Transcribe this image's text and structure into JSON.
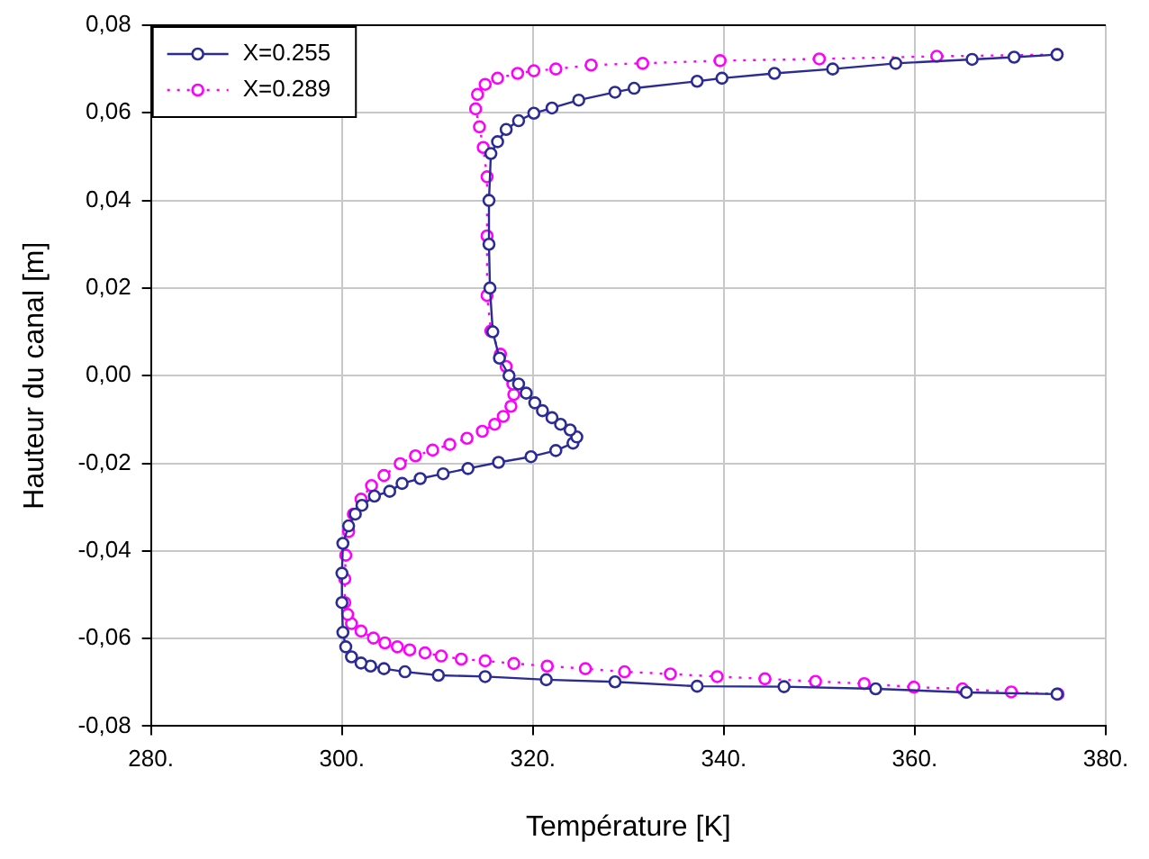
{
  "chart_data": {
    "type": "line",
    "xlabel": "Température [K]",
    "ylabel": "Hauteur du canal [m]",
    "xlim": [
      280,
      380
    ],
    "xticks": [
      {
        "value": 280,
        "label": "280."
      },
      {
        "value": 300,
        "label": "300."
      },
      {
        "value": 320,
        "label": "320."
      },
      {
        "value": 340,
        "label": "340."
      },
      {
        "value": 360,
        "label": "360."
      },
      {
        "value": 380,
        "label": "380."
      }
    ],
    "ylim": [
      -0.08,
      0.08
    ],
    "yticks": [
      {
        "value": -0.08,
        "label": "-0,08"
      },
      {
        "value": -0.06,
        "label": "-0,06"
      },
      {
        "value": -0.04,
        "label": "-0,04"
      },
      {
        "value": -0.02,
        "label": "-0,02"
      },
      {
        "value": 0,
        "label": "0,00"
      },
      {
        "value": 0.02,
        "label": "0,02"
      },
      {
        "value": 0.04,
        "label": "0,04"
      },
      {
        "value": 0.06,
        "label": "0,06"
      },
      {
        "value": 0.08,
        "label": "0,08"
      }
    ],
    "grid": true,
    "legend": "top left",
    "marker": "circle",
    "series": [
      {
        "name": "X=0.255",
        "color": "#2b2b96",
        "line_style": "solid",
        "x": [
          374.9,
          365.4,
          355.9,
          346.3,
          337.2,
          328.6,
          321.4,
          315.0,
          310.1,
          306.6,
          304.4,
          303.0,
          302.0,
          301.0,
          300.4,
          300.1,
          300.0,
          300.0,
          300.1,
          300.7,
          301.4,
          302.1,
          303.4,
          305.0,
          306.3,
          308.2,
          310.6,
          313.2,
          316.4,
          319.8,
          322.4,
          324.2,
          324.6,
          323.9,
          322.9,
          322.0,
          321.0,
          320.2,
          319.3,
          318.5,
          317.5,
          316.5,
          315.8,
          315.5,
          315.4,
          315.4,
          315.6,
          316.3,
          317.2,
          318.5,
          320.1,
          322.0,
          324.8,
          328.6,
          330.6,
          337.2,
          339.8,
          345.3,
          351.4,
          358.0,
          366.0,
          370.4,
          374.9
        ],
        "values": [
          -0.0727,
          -0.0723,
          -0.0715,
          -0.071,
          -0.0709,
          -0.0699,
          -0.0694,
          -0.0687,
          -0.0684,
          -0.0676,
          -0.0669,
          -0.0663,
          -0.0656,
          -0.0642,
          -0.0619,
          -0.0586,
          -0.0518,
          -0.0451,
          -0.0383,
          -0.0343,
          -0.0316,
          -0.0296,
          -0.0275,
          -0.0264,
          -0.0246,
          -0.0235,
          -0.0224,
          -0.0212,
          -0.0198,
          -0.0185,
          -0.0171,
          -0.0154,
          -0.014,
          -0.0124,
          -0.0111,
          -0.0096,
          -0.008,
          -0.0062,
          -0.004,
          -0.0019,
          0.0,
          0.004,
          0.01,
          0.02,
          0.03,
          0.04,
          0.0507,
          0.0534,
          0.0562,
          0.0582,
          0.0599,
          0.0611,
          0.0629,
          0.0647,
          0.0656,
          0.0672,
          0.0679,
          0.069,
          0.07,
          0.0713,
          0.0722,
          0.0727,
          0.0733
        ]
      },
      {
        "name": "X=0.289",
        "color": "#ff00ff",
        "line_style": "dotted",
        "x": [
          375.0,
          370.1,
          365.0,
          359.9,
          354.7,
          349.6,
          344.3,
          339.3,
          334.4,
          329.6,
          325.5,
          321.5,
          318.0,
          315.0,
          312.5,
          310.4,
          308.7,
          307.1,
          305.8,
          304.5,
          303.3,
          302.0,
          301.0,
          300.6,
          300.3,
          300.3,
          300.4,
          300.7,
          301.2,
          302.0,
          303.1,
          304.4,
          306.1,
          307.7,
          309.5,
          311.3,
          313.1,
          314.7,
          316.0,
          316.9,
          317.7,
          318.0,
          317.9,
          317.2,
          316.6,
          315.6,
          315.2,
          315.2,
          315.2,
          314.8,
          314.4,
          314.0,
          314.2,
          315.0,
          316.3,
          318.4,
          320.1,
          322.4,
          326.1,
          331.5,
          339.6,
          350.0,
          362.3,
          374.9
        ],
        "values": [
          -0.0727,
          -0.0722,
          -0.0715,
          -0.0711,
          -0.0703,
          -0.0698,
          -0.0692,
          -0.0687,
          -0.0681,
          -0.0676,
          -0.0669,
          -0.0663,
          -0.0657,
          -0.0651,
          -0.0647,
          -0.064,
          -0.0633,
          -0.0626,
          -0.0619,
          -0.061,
          -0.0599,
          -0.0583,
          -0.0566,
          -0.0545,
          -0.0518,
          -0.0464,
          -0.041,
          -0.0356,
          -0.0316,
          -0.0282,
          -0.0251,
          -0.0228,
          -0.0201,
          -0.0183,
          -0.017,
          -0.0157,
          -0.0143,
          -0.0127,
          -0.0111,
          -0.0093,
          -0.007,
          -0.0043,
          -0.0019,
          0.0021,
          0.0049,
          0.0102,
          0.0183,
          0.0319,
          0.0454,
          0.0521,
          0.0568,
          0.0609,
          0.0642,
          0.0665,
          0.0679,
          0.069,
          0.0696,
          0.07,
          0.0709,
          0.0713,
          0.0719,
          0.0723,
          0.0729,
          0.0733
        ]
      }
    ]
  }
}
